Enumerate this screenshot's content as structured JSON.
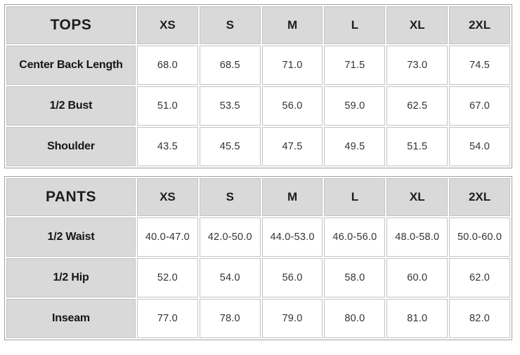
{
  "colors": {
    "header_fill": "#d9d9d9",
    "cell_background": "#ffffff",
    "cell_border": "#c3c3c3",
    "outer_border": "#a3a3a3",
    "label_text": "#151515",
    "value_text": "#333333"
  },
  "chart_data": [
    {
      "type": "table",
      "title": "TOPS",
      "columns": [
        "XS",
        "S",
        "M",
        "L",
        "XL",
        "2XL"
      ],
      "rows": [
        {
          "label": "Center Back Length",
          "values": [
            "68.0",
            "68.5",
            "71.0",
            "71.5",
            "73.0",
            "74.5"
          ]
        },
        {
          "label": "1/2 Bust",
          "values": [
            "51.0",
            "53.5",
            "56.0",
            "59.0",
            "62.5",
            "67.0"
          ]
        },
        {
          "label": "Shoulder",
          "values": [
            "43.5",
            "45.5",
            "47.5",
            "49.5",
            "51.5",
            "54.0"
          ]
        }
      ]
    },
    {
      "type": "table",
      "title": "PANTS",
      "columns": [
        "XS",
        "S",
        "M",
        "L",
        "XL",
        "2XL"
      ],
      "rows": [
        {
          "label": "1/2 Waist",
          "values": [
            "40.0-47.0",
            "42.0-50.0",
            "44.0-53.0",
            "46.0-56.0",
            "48.0-58.0",
            "50.0-60.0"
          ]
        },
        {
          "label": "1/2 Hip",
          "values": [
            "52.0",
            "54.0",
            "56.0",
            "58.0",
            "60.0",
            "62.0"
          ]
        },
        {
          "label": "Inseam",
          "values": [
            "77.0",
            "78.0",
            "79.0",
            "80.0",
            "81.0",
            "82.0"
          ]
        }
      ]
    }
  ]
}
